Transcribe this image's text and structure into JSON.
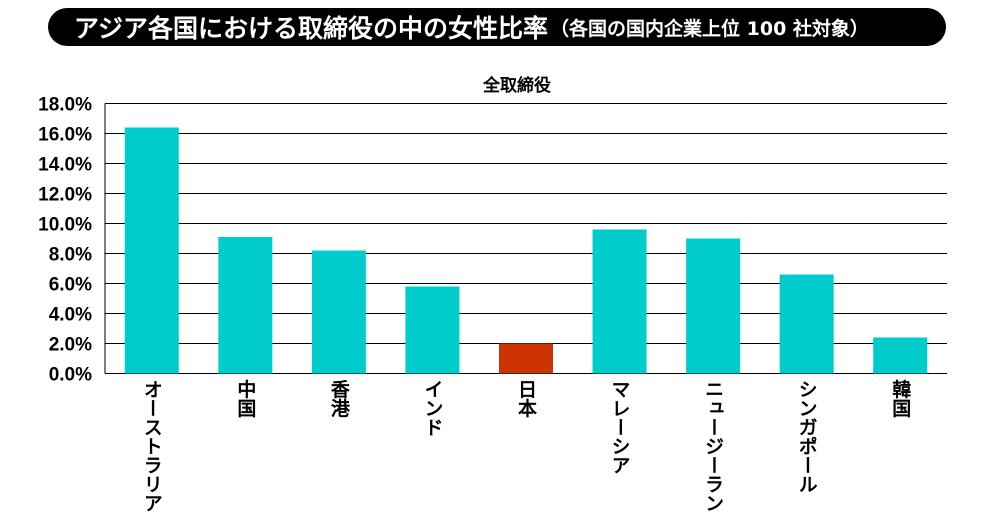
{
  "header": {
    "title": "アジア各国における取締役の中の女性比率",
    "subtitle": "（各国の国内企業上位 100 社対象）"
  },
  "chart_data": {
    "type": "bar",
    "title": "全取締役",
    "categories": [
      "オーストラリア",
      "中国",
      "香港",
      "インド",
      "日本",
      "マレーシア",
      "ニュージーランド",
      "シンガポール",
      "韓国"
    ],
    "values": [
      16.4,
      9.1,
      8.2,
      5.8,
      2.0,
      9.6,
      9.0,
      6.6,
      2.4
    ],
    "ylim": [
      0,
      18
    ],
    "yticks": [
      "0.0%",
      "2.0%",
      "4.0%",
      "6.0%",
      "8.0%",
      "10.0%",
      "12.0%",
      "14.0%",
      "16.0%",
      "18.0%"
    ],
    "xlabel": "",
    "ylabel": "",
    "grid": true,
    "colors": {
      "default_bar": "#00cccc",
      "highlight_bar": "#cc3300",
      "grid": "#000000"
    },
    "highlight_category": "日本"
  }
}
